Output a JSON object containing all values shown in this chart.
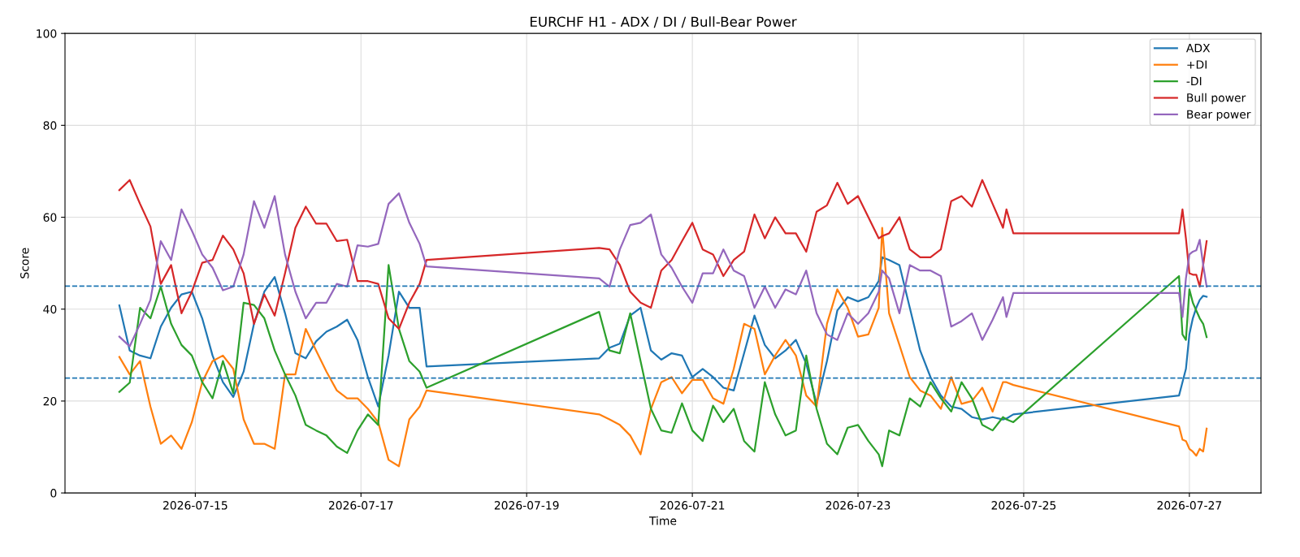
{
  "chart_data": {
    "type": "line",
    "title": "EURCHF H1 - ADX / DI / Bull-Bear Power",
    "xlabel": "Time",
    "ylabel": "Score",
    "x": [
      "2026-07-14T02:00",
      "2026-07-14T05:00",
      "2026-07-14T08:00",
      "2026-07-14T11:00",
      "2026-07-14T14:00",
      "2026-07-14T17:00",
      "2026-07-14T20:00",
      "2026-07-14T23:00",
      "2026-07-15T02:00",
      "2026-07-15T05:00",
      "2026-07-15T08:00",
      "2026-07-15T11:00",
      "2026-07-15T14:00",
      "2026-07-15T17:00",
      "2026-07-15T20:00",
      "2026-07-15T23:00",
      "2026-07-16T02:00",
      "2026-07-16T05:00",
      "2026-07-16T08:00",
      "2026-07-16T11:00",
      "2026-07-16T14:00",
      "2026-07-16T17:00",
      "2026-07-16T20:00",
      "2026-07-16T23:00",
      "2026-07-17T02:00",
      "2026-07-17T05:00",
      "2026-07-17T08:00",
      "2026-07-17T11:00",
      "2026-07-17T14:00",
      "2026-07-17T17:00",
      "2026-07-17T19:00",
      "2026-07-19T21:00",
      "2026-07-20T00:00",
      "2026-07-20T03:00",
      "2026-07-20T06:00",
      "2026-07-20T09:00",
      "2026-07-20T12:00",
      "2026-07-20T15:00",
      "2026-07-20T18:00",
      "2026-07-20T21:00",
      "2026-07-21T00:00",
      "2026-07-21T03:00",
      "2026-07-21T06:00",
      "2026-07-21T09:00",
      "2026-07-21T12:00",
      "2026-07-21T15:00",
      "2026-07-21T18:00",
      "2026-07-21T21:00",
      "2026-07-22T00:00",
      "2026-07-22T03:00",
      "2026-07-22T06:00",
      "2026-07-22T09:00",
      "2026-07-22T12:00",
      "2026-07-22T15:00",
      "2026-07-22T18:00",
      "2026-07-22T21:00",
      "2026-07-23T00:00",
      "2026-07-23T03:00",
      "2026-07-23T06:00",
      "2026-07-23T07:00",
      "2026-07-23T09:00",
      "2026-07-23T12:00",
      "2026-07-23T15:00",
      "2026-07-23T18:00",
      "2026-07-23T21:00",
      "2026-07-24T00:00",
      "2026-07-24T03:00",
      "2026-07-24T06:00",
      "2026-07-24T09:00",
      "2026-07-24T12:00",
      "2026-07-24T15:00",
      "2026-07-24T18:00",
      "2026-07-24T19:00",
      "2026-07-24T21:00",
      "2026-07-26T21:00",
      "2026-07-26T22:00",
      "2026-07-26T23:00",
      "2026-07-27T00:00",
      "2026-07-27T01:00",
      "2026-07-27T02:00",
      "2026-07-27T03:00",
      "2026-07-27T04:00",
      "2026-07-27T05:00"
    ],
    "series": [
      {
        "name": "ADX",
        "color": "#1f77b4",
        "values": [
          40.8,
          31.0,
          29.9,
          29.3,
          36.2,
          40.3,
          43.2,
          43.8,
          38.0,
          29.9,
          24.1,
          20.9,
          26.4,
          36.8,
          43.8,
          47.0,
          39.1,
          30.4,
          29.3,
          33.0,
          35.1,
          36.2,
          37.7,
          33.3,
          25.2,
          18.8,
          29.9,
          43.8,
          40.3,
          40.3,
          27.5,
          29.3,
          31.6,
          32.5,
          38.6,
          40.3,
          31.0,
          29.0,
          30.4,
          29.9,
          25.2,
          27.0,
          25.2,
          22.9,
          22.3,
          30.4,
          38.6,
          32.2,
          29.3,
          31.0,
          33.3,
          28.1,
          19.4,
          28.7,
          39.7,
          42.6,
          41.7,
          42.6,
          46.1,
          51.3,
          50.7,
          49.6,
          40.3,
          31.0,
          25.2,
          21.2,
          18.8,
          18.3,
          16.5,
          16.0,
          16.5,
          16.0,
          16.2,
          17.1,
          21.2,
          24.1,
          27.0,
          34.5,
          38.0,
          40.3,
          42.0,
          42.9,
          42.7
        ]
      },
      {
        "name": "+DI",
        "color": "#ff7f0e",
        "values": [
          29.6,
          25.8,
          28.7,
          18.8,
          10.7,
          12.5,
          9.6,
          15.4,
          24.1,
          28.7,
          29.9,
          27.0,
          16.0,
          10.7,
          10.7,
          9.6,
          25.8,
          25.8,
          35.7,
          31.0,
          26.4,
          22.3,
          20.6,
          20.6,
          18.3,
          15.4,
          7.2,
          5.8,
          16.0,
          18.8,
          22.3,
          17.1,
          16.0,
          14.8,
          12.5,
          8.4,
          18.3,
          24.1,
          25.2,
          21.7,
          24.6,
          24.6,
          20.6,
          19.4,
          27.0,
          36.8,
          35.7,
          25.8,
          29.9,
          33.3,
          29.9,
          21.2,
          18.8,
          36.8,
          44.3,
          40.3,
          34.0,
          34.5,
          40.3,
          57.7,
          39.1,
          32.2,
          25.2,
          22.3,
          21.2,
          18.3,
          25.2,
          19.4,
          20.0,
          22.9,
          17.7,
          24.1,
          24.1,
          23.5,
          14.5,
          11.6,
          11.3,
          9.6,
          9.0,
          8.1,
          9.6,
          9.0,
          14.0
        ]
      },
      {
        "name": "-DI",
        "color": "#2ca02c",
        "values": [
          22.0,
          24.0,
          40.3,
          38.0,
          44.9,
          36.8,
          32.2,
          29.9,
          24.1,
          20.6,
          28.7,
          21.7,
          41.4,
          40.9,
          38.0,
          31.0,
          25.8,
          21.2,
          14.8,
          13.6,
          12.5,
          10.1,
          8.7,
          13.6,
          17.1,
          14.8,
          49.6,
          35.7,
          28.7,
          26.4,
          22.9,
          39.4,
          31.0,
          30.4,
          39.1,
          28.7,
          18.3,
          13.6,
          13.1,
          19.5,
          13.6,
          11.3,
          19.0,
          15.4,
          18.3,
          11.3,
          9.0,
          24.1,
          17.1,
          12.5,
          13.6,
          29.9,
          18.3,
          10.7,
          8.4,
          14.2,
          14.8,
          11.3,
          8.4,
          5.8,
          13.6,
          12.5,
          20.6,
          18.8,
          24.1,
          20.6,
          17.7,
          24.1,
          20.6,
          14.8,
          13.6,
          16.5,
          16.0,
          15.4,
          47.2,
          34.5,
          33.3,
          44.3,
          41.4,
          39.7,
          38.0,
          36.8,
          33.9
        ]
      },
      {
        "name": "Bull power",
        "color": "#d62728",
        "values": [
          65.9,
          68.1,
          62.9,
          58.0,
          45.5,
          49.6,
          39.1,
          43.8,
          50.1,
          50.7,
          56.0,
          53.0,
          47.8,
          36.8,
          43.2,
          38.6,
          47.8,
          57.7,
          62.3,
          58.6,
          58.6,
          54.8,
          55.1,
          46.1,
          46.1,
          45.5,
          38.0,
          35.7,
          41.4,
          45.5,
          50.7,
          53.3,
          53.0,
          49.6,
          43.8,
          41.4,
          40.3,
          48.4,
          50.7,
          54.8,
          58.8,
          53.0,
          51.9,
          47.2,
          50.7,
          52.5,
          60.6,
          55.4,
          60.0,
          56.5,
          56.5,
          52.5,
          61.2,
          62.6,
          67.5,
          62.9,
          64.6,
          60.0,
          55.4,
          55.9,
          56.5,
          60.0,
          53.0,
          51.3,
          51.3,
          53.0,
          63.5,
          64.6,
          62.3,
          68.1,
          62.9,
          57.7,
          61.7,
          56.5,
          56.5,
          61.7,
          55.4,
          47.8,
          47.5,
          47.5,
          44.9,
          49.6,
          54.8
        ]
      },
      {
        "name": "Bear power",
        "color": "#9467bd",
        "values": [
          34.0,
          31.9,
          36.8,
          42.0,
          54.8,
          50.7,
          61.7,
          57.1,
          51.9,
          49.0,
          44.1,
          44.9,
          51.9,
          63.5,
          57.7,
          64.6,
          51.9,
          43.8,
          38.0,
          41.4,
          41.4,
          45.5,
          44.9,
          53.9,
          53.6,
          54.2,
          62.9,
          65.2,
          58.8,
          54.2,
          49.3,
          46.7,
          44.9,
          53.0,
          58.3,
          58.8,
          60.6,
          51.9,
          49.0,
          44.9,
          41.4,
          47.8,
          47.8,
          53.0,
          48.4,
          47.2,
          40.3,
          44.9,
          40.3,
          44.3,
          43.2,
          48.4,
          39.1,
          34.5,
          33.3,
          39.1,
          36.8,
          39.1,
          43.8,
          48.4,
          46.7,
          39.1,
          49.6,
          48.4,
          48.4,
          47.2,
          36.2,
          37.4,
          39.1,
          33.3,
          37.7,
          42.6,
          38.3,
          43.5,
          43.5,
          38.3,
          46.7,
          51.9,
          52.5,
          52.8,
          55.1,
          49.6,
          44.9
        ]
      }
    ],
    "xlim": [
      "2026-07-13T10:15",
      "2026-07-27T20:45"
    ],
    "xticks": [
      "2026-07-15",
      "2026-07-17",
      "2026-07-19",
      "2026-07-21",
      "2026-07-23",
      "2026-07-25",
      "2026-07-27"
    ],
    "ylim": [
      0,
      100
    ],
    "yticks": [
      0,
      20,
      40,
      60,
      80,
      100
    ],
    "ref_lines": [
      {
        "axis": "y",
        "value": 45,
        "color": "#1f77b4",
        "line_style": "dashed"
      },
      {
        "axis": "y",
        "value": 25,
        "color": "#1f77b4",
        "line_style": "dashed"
      }
    ],
    "grid": true,
    "legend": "top right",
    "line_style": "solid",
    "marker": "none"
  }
}
